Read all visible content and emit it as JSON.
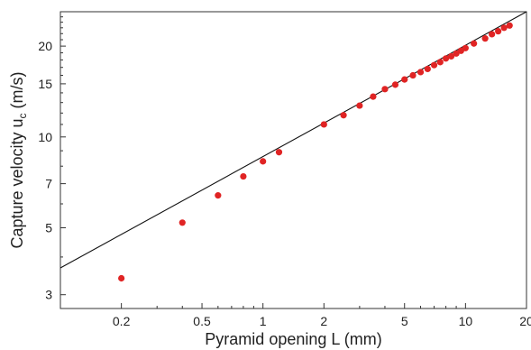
{
  "chart_data": {
    "type": "scatter",
    "title": "",
    "xlabel": "Pyramid opening L (mm)",
    "ylabel_main": "Capture velocity u",
    "ylabel_sub": "c",
    "ylabel_unit": " (m/s)",
    "xscale": "log",
    "yscale": "log",
    "xlim": [
      0.1,
      20
    ],
    "ylim": [
      2.7,
      26
    ],
    "xticks": [
      {
        "value": 0.2,
        "label": "0.2"
      },
      {
        "value": 0.5,
        "label": "0.5"
      },
      {
        "value": 1,
        "label": "1"
      },
      {
        "value": 2,
        "label": "2"
      },
      {
        "value": 5,
        "label": "5"
      },
      {
        "value": 10,
        "label": "10"
      },
      {
        "value": 20,
        "label": "20"
      }
    ],
    "yticks": [
      {
        "value": 3,
        "label": "3"
      },
      {
        "value": 5,
        "label": "5"
      },
      {
        "value": 7,
        "label": "7"
      },
      {
        "value": 10,
        "label": "10"
      },
      {
        "value": 15,
        "label": "15"
      },
      {
        "value": 20,
        "label": "20"
      }
    ],
    "grid": false,
    "point_color": "#e02424",
    "line_color": "#111111",
    "fit_line": {
      "x": [
        0.1,
        20
      ],
      "y": [
        3.68,
        26.0
      ]
    },
    "points": [
      {
        "x": 0.2,
        "y": 3.4
      },
      {
        "x": 0.4,
        "y": 5.2
      },
      {
        "x": 0.6,
        "y": 6.4
      },
      {
        "x": 0.8,
        "y": 7.4
      },
      {
        "x": 1.0,
        "y": 8.3
      },
      {
        "x": 1.2,
        "y": 8.9
      },
      {
        "x": 2.0,
        "y": 11.0
      },
      {
        "x": 2.5,
        "y": 11.8
      },
      {
        "x": 3.0,
        "y": 12.7
      },
      {
        "x": 3.5,
        "y": 13.6
      },
      {
        "x": 4.0,
        "y": 14.4
      },
      {
        "x": 4.5,
        "y": 14.9
      },
      {
        "x": 5.0,
        "y": 15.5
      },
      {
        "x": 5.5,
        "y": 16.0
      },
      {
        "x": 6.0,
        "y": 16.4
      },
      {
        "x": 6.5,
        "y": 16.8
      },
      {
        "x": 7.0,
        "y": 17.3
      },
      {
        "x": 7.5,
        "y": 17.7
      },
      {
        "x": 8.0,
        "y": 18.2
      },
      {
        "x": 8.5,
        "y": 18.5
      },
      {
        "x": 9.0,
        "y": 18.9
      },
      {
        "x": 9.5,
        "y": 19.3
      },
      {
        "x": 10.0,
        "y": 19.7
      },
      {
        "x": 11.0,
        "y": 20.4
      },
      {
        "x": 12.5,
        "y": 21.2
      },
      {
        "x": 13.5,
        "y": 21.9
      },
      {
        "x": 14.5,
        "y": 22.4
      },
      {
        "x": 15.5,
        "y": 23.0
      },
      {
        "x": 16.5,
        "y": 23.4
      }
    ]
  }
}
